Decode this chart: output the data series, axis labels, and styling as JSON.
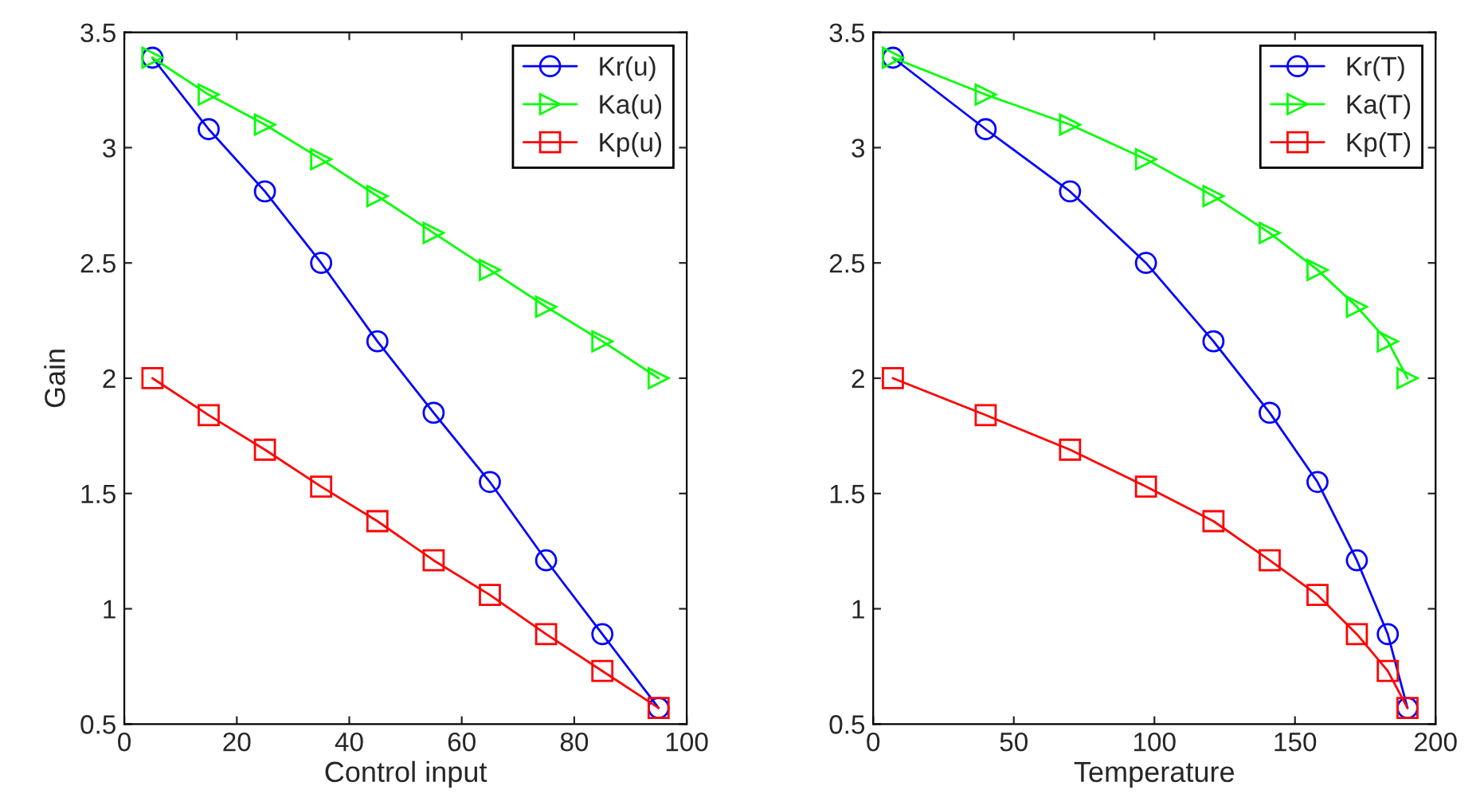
{
  "chart_data": [
    {
      "type": "line",
      "xlabel": "Control input",
      "ylabel": "Gain",
      "x": [
        5,
        15,
        25,
        35,
        45,
        55,
        65,
        75,
        85,
        95
      ],
      "xlim": [
        0,
        100
      ],
      "xticks": [
        0,
        20,
        40,
        60,
        80,
        100
      ],
      "ylim": [
        0.5,
        3.5
      ],
      "yticks": [
        0.5,
        1,
        1.5,
        2,
        2.5,
        3,
        3.5
      ],
      "legend": "top right",
      "grid": false,
      "line_style": "solid",
      "series": [
        {
          "name": "Kr(u)",
          "color": "#0000ff",
          "marker": "circle",
          "values": [
            3.39,
            3.08,
            2.81,
            2.5,
            2.16,
            1.85,
            1.55,
            1.21,
            0.89,
            0.57
          ]
        },
        {
          "name": "Ka(u)",
          "color": "#00ff00",
          "marker": "triangle",
          "values": [
            3.39,
            3.23,
            3.1,
            2.95,
            2.79,
            2.63,
            2.47,
            2.31,
            2.16,
            2.0
          ]
        },
        {
          "name": "Kp(u)",
          "color": "#ff0000",
          "marker": "square",
          "values": [
            2.0,
            1.84,
            1.69,
            1.53,
            1.38,
            1.21,
            1.06,
            0.89,
            0.73,
            0.57
          ]
        }
      ]
    },
    {
      "type": "line",
      "xlabel": "Temperature",
      "x": [
        7,
        40,
        70,
        97,
        121,
        141,
        158,
        172,
        183,
        190
      ],
      "xlim": [
        0,
        200
      ],
      "xticks": [
        0,
        50,
        100,
        150,
        200
      ],
      "ylim": [
        0.5,
        3.5
      ],
      "yticks": [
        0.5,
        1,
        1.5,
        2,
        2.5,
        3,
        3.5
      ],
      "legend": "top right",
      "grid": false,
      "line_style": "solid",
      "series": [
        {
          "name": "Kr(T)",
          "color": "#0000ff",
          "marker": "circle",
          "values": [
            3.39,
            3.08,
            2.81,
            2.5,
            2.16,
            1.85,
            1.55,
            1.21,
            0.89,
            0.57
          ]
        },
        {
          "name": "Ka(T)",
          "color": "#00ff00",
          "marker": "triangle",
          "values": [
            3.39,
            3.23,
            3.1,
            2.95,
            2.79,
            2.63,
            2.47,
            2.31,
            2.16,
            2.0
          ]
        },
        {
          "name": "Kp(T)",
          "color": "#ff0000",
          "marker": "square",
          "values": [
            2.0,
            1.84,
            1.69,
            1.53,
            1.38,
            1.21,
            1.06,
            0.89,
            0.73,
            0.57
          ]
        }
      ]
    }
  ]
}
